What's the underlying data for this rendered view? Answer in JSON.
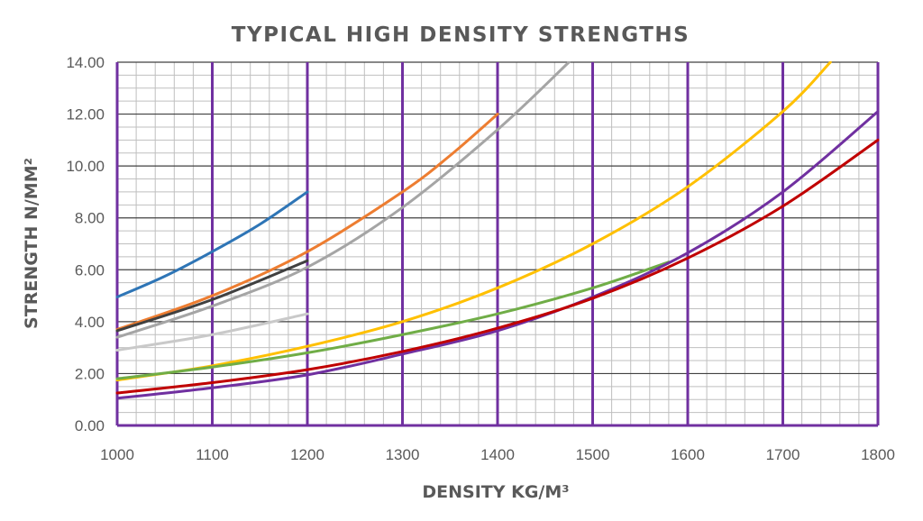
{
  "chart_data": {
    "type": "line",
    "title": "TYPICAL HIGH DENSITY STRENGTHS",
    "xlabel": "DENSITY KG/M³",
    "ylabel": "STRENGTH N/MM²",
    "xlim": [
      1000,
      1800
    ],
    "ylim": [
      0,
      14
    ],
    "x_ticks": [
      "1000",
      "1100",
      "1200",
      "1300",
      "1400",
      "1500",
      "1600",
      "1700",
      "1800"
    ],
    "y_ticks": [
      "0.00",
      "2.00",
      "4.00",
      "6.00",
      "8.00",
      "10.00",
      "12.00",
      "14.00"
    ],
    "grid": true,
    "legend": false,
    "grid_colors": {
      "major_vertical": "#7030a0",
      "horizontal": "#404040",
      "minor": "#bfbfbf"
    },
    "series": [
      {
        "color": "#2e75b6",
        "x": [
          1000,
          1050,
          1100,
          1150,
          1200
        ],
        "y": [
          4.95,
          5.75,
          6.7,
          7.75,
          9.0
        ]
      },
      {
        "color": "#ed7d31",
        "x": [
          1000,
          1100,
          1200,
          1300,
          1350,
          1400
        ],
        "y": [
          3.7,
          5.0,
          6.7,
          9.0,
          10.4,
          12.0
        ]
      },
      {
        "color": "#404040",
        "x": [
          1000,
          1100,
          1200
        ],
        "y": [
          3.65,
          4.85,
          6.35
        ]
      },
      {
        "color": "#a5a5a5",
        "x": [
          1000,
          1100,
          1200,
          1300,
          1400,
          1475
        ],
        "y": [
          3.4,
          4.6,
          6.1,
          8.4,
          11.4,
          14.0
        ]
      },
      {
        "color": "#c9c9c9",
        "x": [
          1000,
          1100,
          1200
        ],
        "y": [
          2.9,
          3.5,
          4.3
        ]
      },
      {
        "color": "#ffc000",
        "x": [
          1000,
          1100,
          1200,
          1300,
          1400,
          1500,
          1600,
          1700,
          1750
        ],
        "y": [
          1.75,
          2.3,
          3.05,
          4.0,
          5.3,
          7.0,
          9.2,
          12.1,
          14.0
        ]
      },
      {
        "color": "#70ad47",
        "x": [
          1000,
          1100,
          1200,
          1300,
          1400,
          1500,
          1580
        ],
        "y": [
          1.8,
          2.25,
          2.8,
          3.5,
          4.3,
          5.3,
          6.3
        ]
      },
      {
        "color": "#7030a0",
        "x": [
          1000,
          1100,
          1200,
          1300,
          1400,
          1500,
          1600,
          1700,
          1800
        ],
        "y": [
          1.05,
          1.45,
          1.95,
          2.75,
          3.65,
          4.95,
          6.65,
          9.0,
          12.1
        ]
      },
      {
        "color": "#c00000",
        "x": [
          1000,
          1100,
          1200,
          1300,
          1400,
          1500,
          1600,
          1700,
          1800
        ],
        "y": [
          1.25,
          1.65,
          2.15,
          2.85,
          3.75,
          4.9,
          6.45,
          8.45,
          11.0
        ]
      }
    ]
  }
}
